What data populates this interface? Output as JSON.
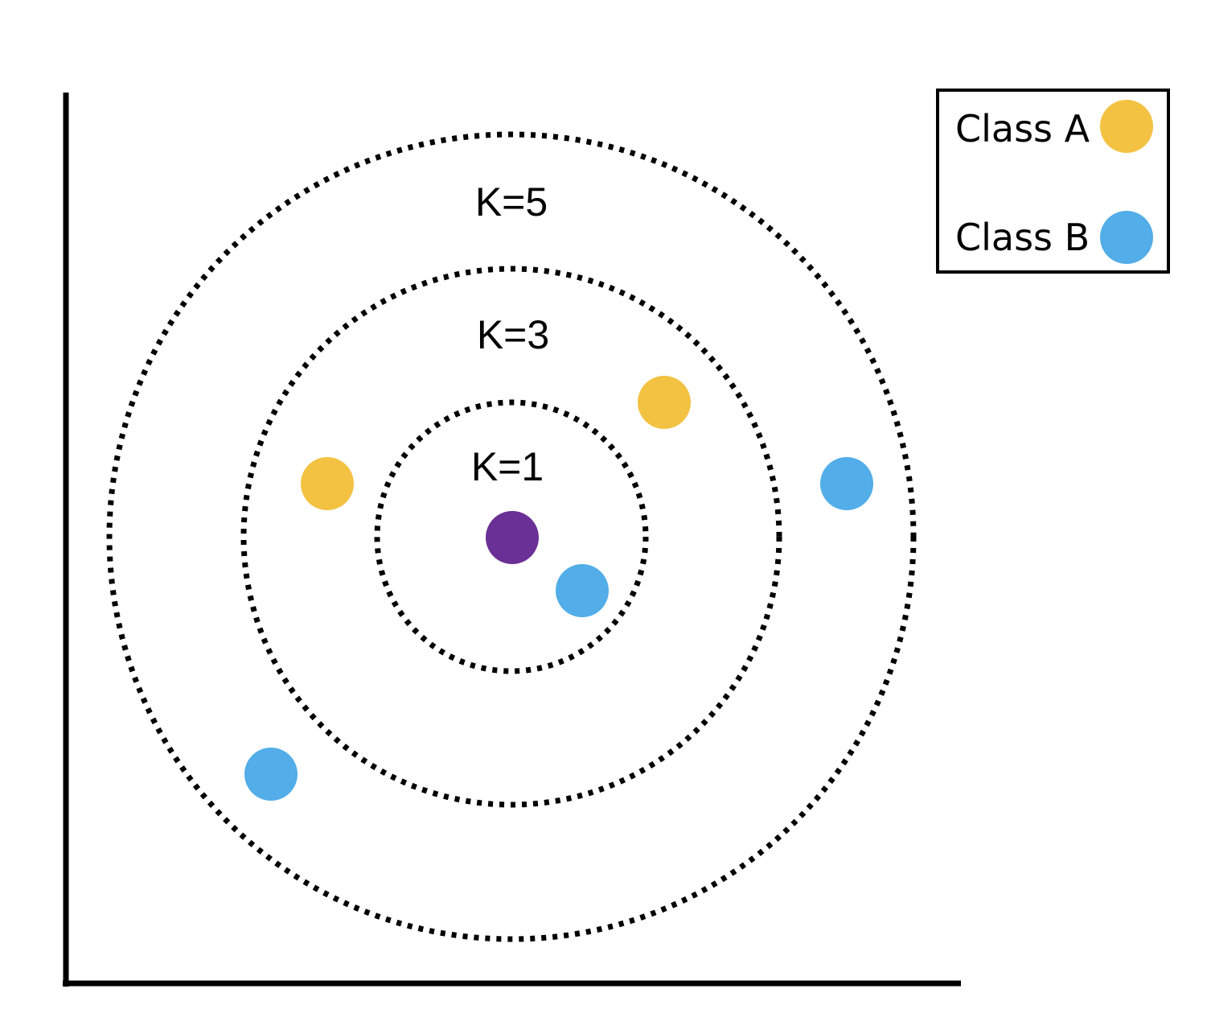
{
  "colors": {
    "class_a": "#F4C242",
    "class_b": "#52ADE8",
    "query": "#6A3095",
    "outline": "#000000"
  },
  "rings": [
    {
      "label": "K=1"
    },
    {
      "label": "K=3"
    },
    {
      "label": "K=5"
    }
  ],
  "points": [
    {
      "class": "query"
    },
    {
      "class": "class_b"
    },
    {
      "class": "class_a"
    },
    {
      "class": "class_a"
    },
    {
      "class": "class_b"
    },
    {
      "class": "class_b"
    }
  ],
  "legend": {
    "items": [
      {
        "label": "Class A",
        "color_key": "class_a"
      },
      {
        "label": "Class B",
        "color_key": "class_b"
      }
    ]
  }
}
